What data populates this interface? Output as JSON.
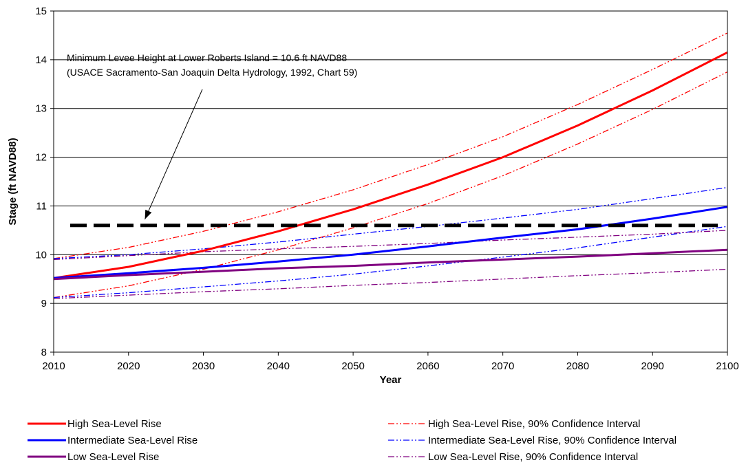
{
  "chart_data": {
    "type": "line",
    "xlabel": "Year",
    "ylabel": "Stage (ft NAVD88)",
    "xlim": [
      2010,
      2100
    ],
    "ylim": [
      8,
      15
    ],
    "xticks": [
      2010,
      2020,
      2030,
      2040,
      2050,
      2060,
      2070,
      2080,
      2090,
      2100
    ],
    "yticks": [
      8,
      9,
      10,
      11,
      12,
      13,
      14,
      15
    ],
    "grid": "horizontal",
    "legend_position": "bottom",
    "annotation": {
      "line1": "Minimum Levee Height at Lower Roberts Island = 10.6 ft NAVD88",
      "line2": "(USACE Sacramento-San Joaquin Delta Hydrology, 1992, Chart 59)",
      "arrow_to": [
        2022,
        10.6
      ]
    },
    "reference_line": {
      "y": 10.6,
      "x_range": [
        2010,
        2100
      ],
      "color": "#000000",
      "style": "dashed"
    },
    "x": [
      2010,
      2020,
      2030,
      2040,
      2050,
      2060,
      2070,
      2080,
      2090,
      2100
    ],
    "series": [
      {
        "name": "High Sea-Level Rise",
        "color": "#ff0000",
        "style": "solid",
        "values": [
          9.52,
          9.75,
          10.08,
          10.48,
          10.93,
          11.44,
          12.0,
          12.65,
          13.37,
          14.15
        ]
      },
      {
        "name": "Intermediate Sea-Level Rise",
        "color": "#0000ff",
        "style": "solid",
        "values": [
          9.52,
          9.62,
          9.73,
          9.86,
          10.0,
          10.17,
          10.35,
          10.52,
          10.74,
          10.98
        ]
      },
      {
        "name": "Low Sea-Level Rise",
        "color": "#800080",
        "style": "solid",
        "values": [
          9.5,
          9.58,
          9.65,
          9.72,
          9.77,
          9.84,
          9.9,
          9.96,
          10.03,
          10.1
        ]
      },
      {
        "name": "High Sea-Level Rise, 90% Confidence Interval",
        "color": "#ff0000",
        "style": "dashdotdot",
        "values": [
          9.92,
          10.15,
          10.48,
          10.88,
          11.33,
          11.85,
          12.42,
          13.08,
          13.8,
          14.55
        ]
      },
      {
        "name": "High Sea-Level Rise, 90% Confidence Interval",
        "color": "#ff0000",
        "style": "dashdotdot",
        "hide_in_legend": true,
        "values": [
          9.12,
          9.36,
          9.7,
          10.1,
          10.55,
          11.05,
          11.62,
          12.27,
          12.98,
          13.75
        ]
      },
      {
        "name": "Intermediate Sea-Level Rise, 90% Confidence Interval",
        "color": "#0000ff",
        "style": "dashdotdot",
        "values": [
          9.92,
          10.0,
          10.12,
          10.26,
          10.42,
          10.58,
          10.75,
          10.93,
          11.15,
          11.38
        ]
      },
      {
        "name": "Intermediate Sea-Level Rise, 90% Confidence Interval",
        "color": "#0000ff",
        "style": "dashdotdot",
        "hide_in_legend": true,
        "values": [
          9.12,
          9.22,
          9.34,
          9.46,
          9.6,
          9.77,
          9.95,
          10.14,
          10.36,
          10.58
        ]
      },
      {
        "name": "Low Sea-Level Rise, 90% Confidence Interval",
        "color": "#800080",
        "style": "dashdotdot",
        "values": [
          9.9,
          9.98,
          10.06,
          10.12,
          10.17,
          10.23,
          10.3,
          10.36,
          10.42,
          10.5
        ]
      },
      {
        "name": "Low Sea-Level Rise, 90% Confidence Interval",
        "color": "#800080",
        "style": "dashdotdot",
        "hide_in_legend": true,
        "values": [
          9.1,
          9.17,
          9.24,
          9.3,
          9.37,
          9.43,
          9.5,
          9.57,
          9.63,
          9.7
        ]
      }
    ]
  }
}
